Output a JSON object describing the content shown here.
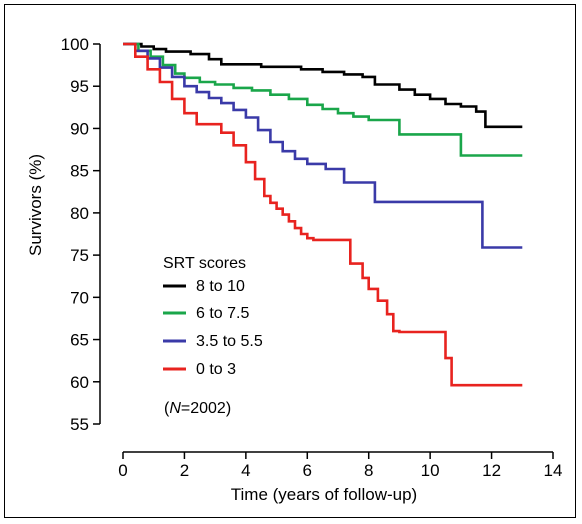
{
  "chart_data": {
    "type": "line",
    "step": true,
    "xlabel": "Time (years of follow-up)",
    "ylabel": "Survivors (%)",
    "xlim": [
      0,
      14
    ],
    "ylim": [
      55,
      100
    ],
    "xticks": [
      0,
      2,
      4,
      6,
      8,
      10,
      12,
      14
    ],
    "yticks": [
      55,
      60,
      65,
      70,
      75,
      80,
      85,
      90,
      95,
      100
    ],
    "grid": false,
    "legend": {
      "title": "SRT scores",
      "placement": "center-left",
      "note_prefix": "(",
      "note_italic": "N",
      "note_suffix": "=2002)"
    },
    "series": [
      {
        "name": "8 to 10",
        "color": "#000000",
        "x": [
          0,
          0.6,
          1.0,
          1.4,
          2.2,
          2.8,
          3.2,
          4.5,
          5.8,
          6.5,
          7.2,
          7.8,
          8.2,
          9.0,
          9.5,
          10.0,
          10.5,
          11.0,
          11.5,
          11.8,
          13.0
        ],
        "y": [
          100,
          99.7,
          99.4,
          99.1,
          98.8,
          98.2,
          97.6,
          97.3,
          97.0,
          96.7,
          96.4,
          96.1,
          95.2,
          94.6,
          94.0,
          93.5,
          92.9,
          92.6,
          92.0,
          90.2,
          90.2
        ]
      },
      {
        "name": "6 to 7.5",
        "color": "#1aa64a",
        "x": [
          0,
          0.5,
          0.9,
          1.3,
          1.7,
          2.0,
          2.5,
          3.0,
          3.6,
          4.2,
          4.8,
          5.4,
          6.0,
          6.5,
          7.0,
          7.5,
          8.0,
          9.0,
          11.0,
          13.0
        ],
        "y": [
          100,
          99.2,
          98.5,
          97.5,
          96.5,
          96.0,
          95.5,
          95.2,
          94.8,
          94.5,
          94.0,
          93.5,
          92.8,
          92.3,
          91.8,
          91.4,
          91.0,
          89.3,
          86.8,
          86.8
        ]
      },
      {
        "name": "3.5 to 5.5",
        "color": "#3a3aa8",
        "x": [
          0,
          0.4,
          0.8,
          1.2,
          1.6,
          2.0,
          2.4,
          2.8,
          3.2,
          3.6,
          4.0,
          4.4,
          4.8,
          5.2,
          5.6,
          6.0,
          6.6,
          7.2,
          8.2,
          11.7,
          13.0
        ],
        "y": [
          100,
          99.2,
          98.3,
          97.2,
          96.1,
          95.0,
          94.3,
          93.6,
          93.0,
          92.2,
          91.3,
          89.8,
          88.4,
          87.3,
          86.4,
          85.8,
          85.2,
          83.6,
          81.3,
          75.9,
          75.9
        ]
      },
      {
        "name": "0 to 3",
        "color": "#e8231f",
        "x": [
          0,
          0.4,
          0.8,
          1.2,
          1.6,
          2.0,
          2.4,
          3.2,
          3.6,
          4.0,
          4.3,
          4.6,
          4.8,
          5.0,
          5.2,
          5.4,
          5.6,
          5.8,
          6.0,
          6.2,
          6.6,
          7.4,
          7.8,
          8.0,
          8.3,
          8.6,
          8.8,
          9.0,
          10.5,
          10.7,
          13.0
        ],
        "y": [
          100,
          98.5,
          97.0,
          95.5,
          93.5,
          91.8,
          90.5,
          89.5,
          88.0,
          86.0,
          84.0,
          82.0,
          81.2,
          80.5,
          79.8,
          79.0,
          78.2,
          77.5,
          77.0,
          76.8,
          76.8,
          74.0,
          72.3,
          71.0,
          69.6,
          68.0,
          66.0,
          65.9,
          62.8,
          59.6,
          59.6
        ]
      }
    ]
  }
}
